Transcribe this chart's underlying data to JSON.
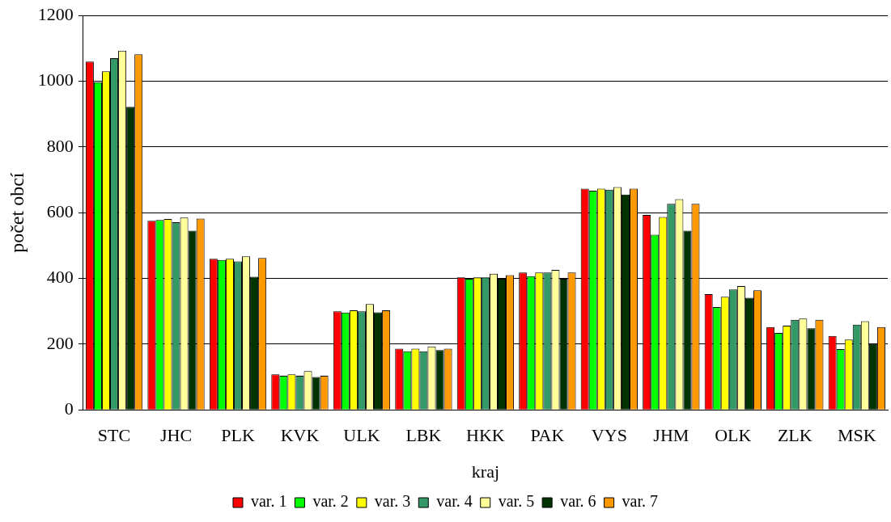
{
  "chart_data": {
    "type": "bar",
    "xlabel": "kraj",
    "ylabel": "počet obcí",
    "categories": [
      "STC",
      "JHC",
      "PLK",
      "KVK",
      "ULK",
      "LBK",
      "HKK",
      "PAK",
      "VYS",
      "JHM",
      "OLK",
      "ZLK",
      "MSK"
    ],
    "series": [
      {
        "name": "var. 1",
        "color": "#ff0000",
        "values": [
          1060,
          575,
          460,
          108,
          300,
          186,
          403,
          418,
          673,
          593,
          352,
          252,
          225
        ]
      },
      {
        "name": "var. 2",
        "color": "#00ff00",
        "values": [
          997,
          578,
          456,
          104,
          296,
          178,
          399,
          407,
          667,
          533,
          313,
          234,
          185
        ]
      },
      {
        "name": "var. 3",
        "color": "#ffff00",
        "values": [
          1030,
          581,
          460,
          108,
          303,
          186,
          403,
          418,
          673,
          587,
          344,
          256,
          214
        ]
      },
      {
        "name": "var. 4",
        "color": "#339966",
        "values": [
          1070,
          571,
          452,
          104,
          300,
          178,
          403,
          418,
          670,
          627,
          366,
          274,
          259
        ]
      },
      {
        "name": "var. 5",
        "color": "#ffff99",
        "values": [
          1093,
          585,
          467,
          118,
          322,
          193,
          414,
          426,
          678,
          641,
          377,
          278,
          270
        ]
      },
      {
        "name": "var. 6",
        "color": "#003300",
        "values": [
          922,
          545,
          405,
          100,
          297,
          182,
          399,
          399,
          655,
          545,
          341,
          248,
          200
        ]
      },
      {
        "name": "var. 7",
        "color": "#ff9900",
        "values": [
          1082,
          582,
          462,
          104,
          303,
          186,
          410,
          418,
          673,
          627,
          364,
          274,
          252
        ]
      }
    ],
    "ylim": [
      0,
      1200
    ],
    "yticks": [
      0,
      200,
      400,
      600,
      800,
      1000,
      1200
    ],
    "grid": "y",
    "legend": "bottom"
  }
}
